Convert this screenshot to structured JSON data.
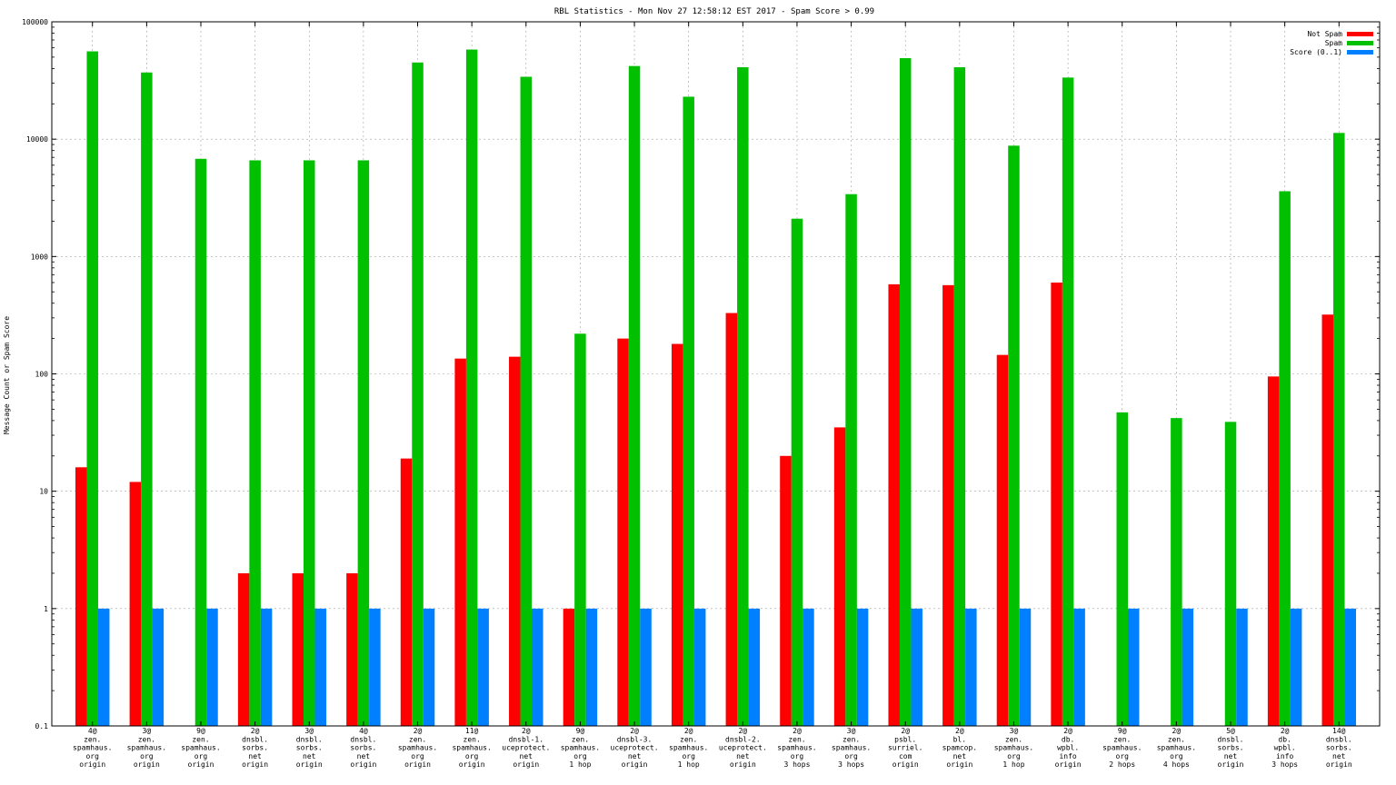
{
  "chart_data": {
    "type": "bar",
    "title": "RBL Statistics - Mon Nov 27 12:58:12 EST 2017 - Spam Score > 0.99",
    "xlabel": "",
    "ylabel": "Message Count or Spam Score",
    "yscale": "log",
    "ylim": [
      0.1,
      100000
    ],
    "yticks": [
      "0.1",
      "1",
      "10",
      "100",
      "1000",
      "10000",
      "100000"
    ],
    "grid": true,
    "legend_position": "top-right",
    "categories": [
      [
        "4@",
        "zen.",
        "spamhaus.",
        "org",
        "origin"
      ],
      [
        "3@",
        "zen.",
        "spamhaus.",
        "org",
        "origin"
      ],
      [
        "9@",
        "zen.",
        "spamhaus.",
        "org",
        "origin"
      ],
      [
        "2@",
        "dnsbl.",
        "sorbs.",
        "net",
        "origin"
      ],
      [
        "3@",
        "dnsbl.",
        "sorbs.",
        "net",
        "origin"
      ],
      [
        "4@",
        "dnsbl.",
        "sorbs.",
        "net",
        "origin"
      ],
      [
        "2@",
        "zen.",
        "spamhaus.",
        "org",
        "origin"
      ],
      [
        "11@",
        "zen.",
        "spamhaus.",
        "org",
        "origin"
      ],
      [
        "2@",
        "dnsbl-1.",
        "uceprotect.",
        "net",
        "origin"
      ],
      [
        "9@",
        "zen.",
        "spamhaus.",
        "org",
        "1 hop"
      ],
      [
        "2@",
        "dnsbl-3.",
        "uceprotect.",
        "net",
        "origin"
      ],
      [
        "2@",
        "zen.",
        "spamhaus.",
        "org",
        "1 hop"
      ],
      [
        "2@",
        "dnsbl-2.",
        "uceprotect.",
        "net",
        "origin"
      ],
      [
        "2@",
        "zen.",
        "spamhaus.",
        "org",
        "3 hops"
      ],
      [
        "3@",
        "zen.",
        "spamhaus.",
        "org",
        "3 hops"
      ],
      [
        "2@",
        "psbl.",
        "surriel.",
        "com",
        "origin"
      ],
      [
        "2@",
        "bl.",
        "spamcop.",
        "net",
        "origin"
      ],
      [
        "3@",
        "zen.",
        "spamhaus.",
        "org",
        "1 hop"
      ],
      [
        "2@",
        "db.",
        "wpbl.",
        "info",
        "origin"
      ],
      [
        "9@",
        "zen.",
        "spamhaus.",
        "org",
        "2 hops"
      ],
      [
        "2@",
        "zen.",
        "spamhaus.",
        "org",
        "4 hops"
      ],
      [
        "5@",
        "dnsbl.",
        "sorbs.",
        "net",
        "origin"
      ],
      [
        "2@",
        "db.",
        "wpbl.",
        "info",
        "3 hops"
      ],
      [
        "14@",
        "dnsbl.",
        "sorbs.",
        "net",
        "origin"
      ]
    ],
    "series": [
      {
        "name": "Not Spam",
        "color": "#ff0000",
        "values": [
          16,
          12,
          null,
          2,
          2,
          2,
          19,
          135,
          140,
          1,
          200,
          180,
          330,
          20,
          35,
          580,
          570,
          145,
          600,
          null,
          null,
          null,
          95,
          320
        ]
      },
      {
        "name": "Spam",
        "color": "#00c000",
        "values": [
          56000,
          37000,
          6800,
          6600,
          6600,
          6600,
          45000,
          58000,
          34000,
          220,
          42000,
          23000,
          41000,
          2100,
          3400,
          49000,
          41000,
          8800,
          33500,
          47,
          42,
          39,
          3600,
          11300
        ]
      },
      {
        "name": "Score (0..1)",
        "color": "#0080ff",
        "values": [
          1,
          1,
          1,
          1,
          1,
          1,
          1,
          1,
          1,
          1,
          1,
          1,
          1,
          1,
          1,
          1,
          1,
          1,
          1,
          1,
          1,
          1,
          1,
          1
        ]
      }
    ]
  }
}
